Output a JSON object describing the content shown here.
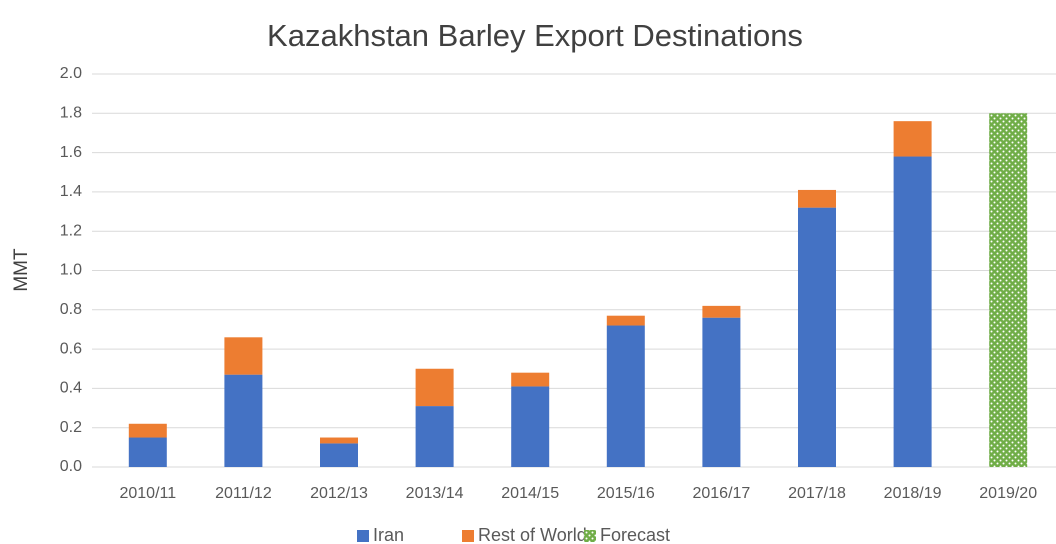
{
  "chart_data": {
    "type": "bar",
    "stacked": true,
    "title": "Kazakhstan Barley Export Destinations",
    "y_label": "MMT",
    "categories": [
      "2010/11",
      "2011/12",
      "2012/13",
      "2013/14",
      "2014/15",
      "2015/16",
      "2016/17",
      "2017/18",
      "2018/19",
      "2019/20"
    ],
    "series": [
      {
        "name": "Iran",
        "color": "#4472c4",
        "values": [
          0.15,
          0.47,
          0.12,
          0.31,
          0.41,
          0.72,
          0.76,
          1.32,
          1.58,
          null
        ]
      },
      {
        "name": "Rest of World",
        "color": "#ed7d31",
        "values": [
          0.07,
          0.19,
          0.03,
          0.19,
          0.07,
          0.05,
          0.06,
          0.09,
          0.18,
          null
        ]
      },
      {
        "name": "Forecast",
        "color": "#70ad47",
        "pattern": "dotted",
        "values": [
          null,
          null,
          null,
          null,
          null,
          null,
          null,
          null,
          null,
          1.8
        ]
      }
    ],
    "ylim": [
      0,
      2
    ],
    "yticks": [
      {
        "value": 0,
        "label": "0.0"
      },
      0.2,
      0.4,
      0.6,
      0.8,
      {
        "value": 1,
        "label": "1.0"
      },
      1.2,
      1.4,
      1.6,
      1.8,
      {
        "value": 2,
        "label": "2.0"
      }
    ],
    "grid": true,
    "legend": "bottom"
  }
}
